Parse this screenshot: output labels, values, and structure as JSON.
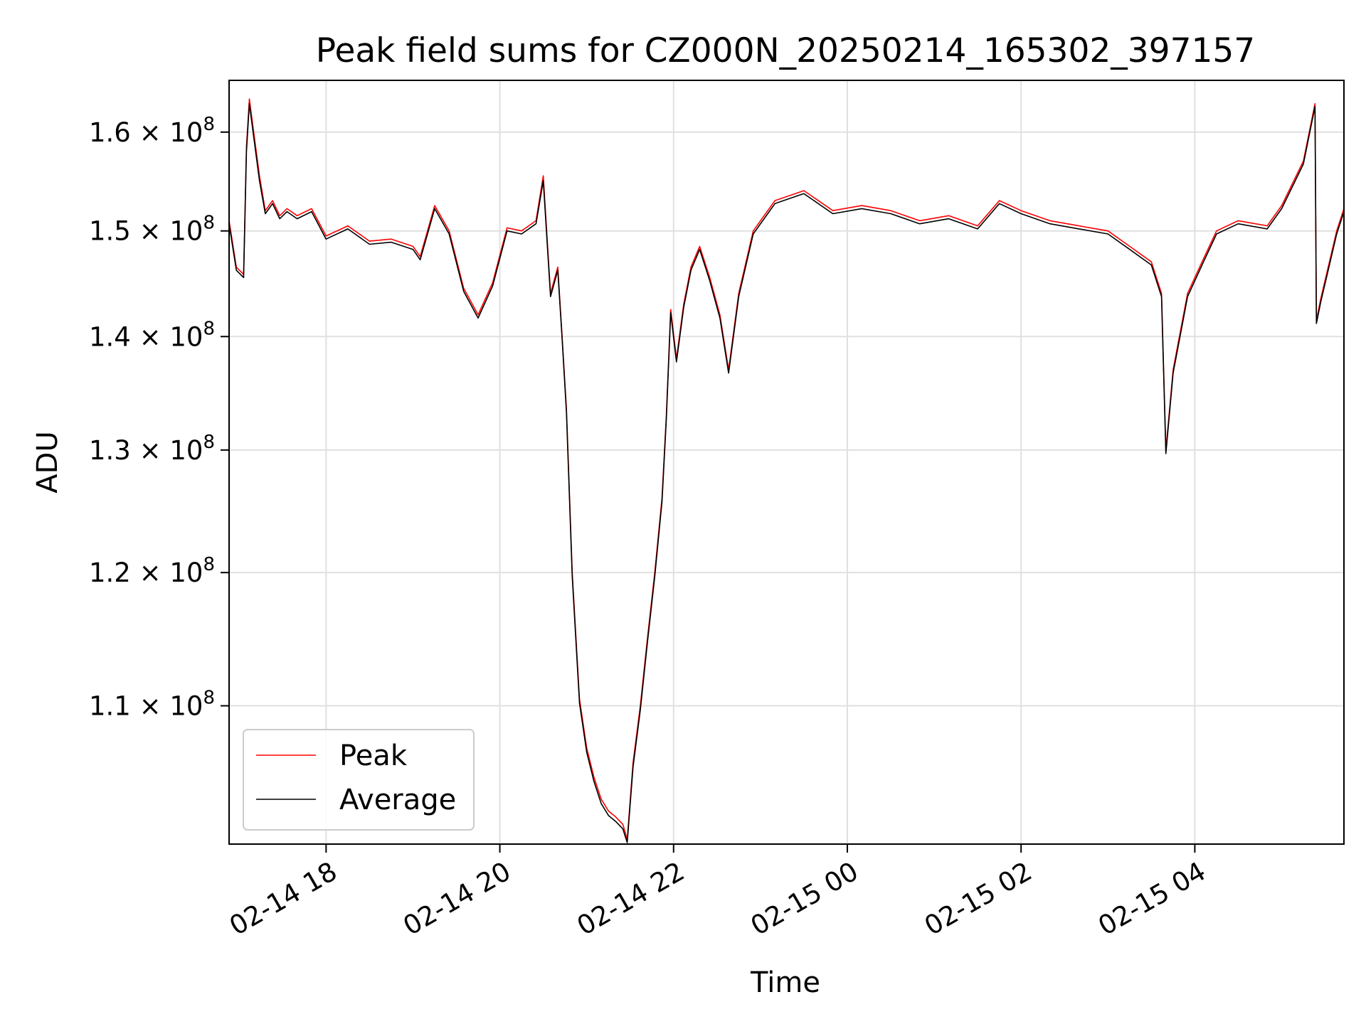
{
  "chart_data": {
    "type": "line",
    "title": "Peak field sums for CZ000N_20250214_165302_397157",
    "xlabel": "Time",
    "ylabel": "ADU",
    "yscale": "log",
    "xlim": [
      "2025-02-14 16:53",
      "2025-02-15 05:43"
    ],
    "ylim": [
      100500000,
      165500000
    ],
    "grid": true,
    "legend": "lower-left",
    "x_ticks": [
      {
        "t": "2025-02-14 18:00",
        "label": "02-14 18"
      },
      {
        "t": "2025-02-14 20:00",
        "label": "02-14 20"
      },
      {
        "t": "2025-02-14 22:00",
        "label": "02-14 22"
      },
      {
        "t": "2025-02-15 00:00",
        "label": "02-15 00"
      },
      {
        "t": "2025-02-15 02:00",
        "label": "02-15 02"
      },
      {
        "t": "2025-02-15 04:00",
        "label": "02-15 04"
      }
    ],
    "y_ticks": [
      {
        "value": 110000000,
        "mantissa": "1.1",
        "times": "×",
        "base": "10",
        "exponent": "8"
      },
      {
        "value": 120000000,
        "mantissa": "1.2",
        "times": "×",
        "base": "10",
        "exponent": "8"
      },
      {
        "value": 130000000,
        "mantissa": "1.3",
        "times": "×",
        "base": "10",
        "exponent": "8"
      },
      {
        "value": 140000000,
        "mantissa": "1.4",
        "times": "×",
        "base": "10",
        "exponent": "8"
      },
      {
        "value": 150000000,
        "mantissa": "1.5",
        "times": "×",
        "base": "10",
        "exponent": "8"
      },
      {
        "value": 160000000,
        "mantissa": "1.6",
        "times": "×",
        "base": "10",
        "exponent": "8"
      }
    ],
    "series": [
      {
        "name": "Peak",
        "color": "#ff0000",
        "x": [
          "2025-02-14 16:53",
          "2025-02-14 16:58",
          "2025-02-14 17:03",
          "2025-02-14 17:05",
          "2025-02-14 17:07",
          "2025-02-14 17:10",
          "2025-02-14 17:14",
          "2025-02-14 17:18",
          "2025-02-14 17:23",
          "2025-02-14 17:28",
          "2025-02-14 17:33",
          "2025-02-14 17:40",
          "2025-02-14 17:50",
          "2025-02-14 18:00",
          "2025-02-14 18:15",
          "2025-02-14 18:30",
          "2025-02-14 18:45",
          "2025-02-14 19:00",
          "2025-02-14 19:05",
          "2025-02-14 19:15",
          "2025-02-14 19:25",
          "2025-02-14 19:35",
          "2025-02-14 19:45",
          "2025-02-14 19:55",
          "2025-02-14 20:05",
          "2025-02-14 20:15",
          "2025-02-14 20:25",
          "2025-02-14 20:30",
          "2025-02-14 20:35",
          "2025-02-14 20:40",
          "2025-02-14 20:43",
          "2025-02-14 20:46",
          "2025-02-14 20:50",
          "2025-02-14 20:55",
          "2025-02-14 21:00",
          "2025-02-14 21:05",
          "2025-02-14 21:10",
          "2025-02-14 21:15",
          "2025-02-14 21:20",
          "2025-02-14 21:25",
          "2025-02-14 21:28",
          "2025-02-14 21:32",
          "2025-02-14 21:37",
          "2025-02-14 21:42",
          "2025-02-14 21:47",
          "2025-02-14 21:52",
          "2025-02-14 21:55",
          "2025-02-14 21:58",
          "2025-02-14 22:02",
          "2025-02-14 22:07",
          "2025-02-14 22:12",
          "2025-02-14 22:18",
          "2025-02-14 22:25",
          "2025-02-14 22:32",
          "2025-02-14 22:38",
          "2025-02-14 22:45",
          "2025-02-14 22:55",
          "2025-02-14 23:10",
          "2025-02-14 23:30",
          "2025-02-14 23:50",
          "2025-02-15 00:10",
          "2025-02-15 00:30",
          "2025-02-15 00:50",
          "2025-02-15 01:10",
          "2025-02-15 01:30",
          "2025-02-15 01:45",
          "2025-02-15 02:00",
          "2025-02-15 02:20",
          "2025-02-15 02:40",
          "2025-02-15 03:00",
          "2025-02-15 03:15",
          "2025-02-15 03:30",
          "2025-02-15 03:37",
          "2025-02-15 03:40",
          "2025-02-15 03:45",
          "2025-02-15 03:55",
          "2025-02-15 04:05",
          "2025-02-15 04:15",
          "2025-02-15 04:30",
          "2025-02-15 04:50",
          "2025-02-15 05:00",
          "2025-02-15 05:15",
          "2025-02-15 05:23",
          "2025-02-15 05:24",
          "2025-02-15 05:27",
          "2025-02-15 05:33",
          "2025-02-15 05:38",
          "2025-02-15 05:43"
        ],
        "values": [
          151000000,
          146500000,
          145800000,
          158500000,
          163500000,
          160000000,
          155500000,
          152000000,
          153000000,
          151500000,
          152200000,
          151500000,
          152200000,
          149500000,
          150500000,
          149000000,
          149200000,
          148500000,
          147500000,
          152500000,
          150000000,
          144500000,
          142000000,
          145000000,
          150300000,
          150000000,
          151000000,
          155500000,
          144000000,
          146500000,
          140000000,
          133500000,
          120000000,
          110500000,
          107000000,
          105000000,
          103500000,
          102700000,
          102300000,
          101800000,
          100800000,
          106000000,
          110000000,
          115000000,
          120000000,
          126000000,
          133000000,
          142500000,
          138000000,
          143000000,
          146500000,
          148500000,
          145500000,
          142000000,
          137000000,
          144000000,
          150000000,
          153000000,
          154000000,
          152000000,
          152500000,
          152000000,
          151000000,
          151500000,
          150500000,
          153000000,
          152000000,
          151000000,
          150500000,
          150000000,
          148500000,
          147000000,
          144000000,
          130000000,
          137000000,
          144000000,
          147000000,
          150000000,
          151000000,
          150500000,
          152500000,
          157000000,
          163000000,
          141500000,
          143500000,
          147000000,
          150000000,
          152200000
        ]
      },
      {
        "name": "Average",
        "color": "#000000",
        "x": [
          "2025-02-14 16:53",
          "2025-02-14 16:58",
          "2025-02-14 17:03",
          "2025-02-14 17:05",
          "2025-02-14 17:07",
          "2025-02-14 17:10",
          "2025-02-14 17:14",
          "2025-02-14 17:18",
          "2025-02-14 17:23",
          "2025-02-14 17:28",
          "2025-02-14 17:33",
          "2025-02-14 17:40",
          "2025-02-14 17:50",
          "2025-02-14 18:00",
          "2025-02-14 18:15",
          "2025-02-14 18:30",
          "2025-02-14 18:45",
          "2025-02-14 19:00",
          "2025-02-14 19:05",
          "2025-02-14 19:15",
          "2025-02-14 19:25",
          "2025-02-14 19:35",
          "2025-02-14 19:45",
          "2025-02-14 19:55",
          "2025-02-14 20:05",
          "2025-02-14 20:15",
          "2025-02-14 20:25",
          "2025-02-14 20:30",
          "2025-02-14 20:35",
          "2025-02-14 20:40",
          "2025-02-14 20:43",
          "2025-02-14 20:46",
          "2025-02-14 20:50",
          "2025-02-14 20:55",
          "2025-02-14 21:00",
          "2025-02-14 21:05",
          "2025-02-14 21:10",
          "2025-02-14 21:15",
          "2025-02-14 21:20",
          "2025-02-14 21:25",
          "2025-02-14 21:28",
          "2025-02-14 21:32",
          "2025-02-14 21:37",
          "2025-02-14 21:42",
          "2025-02-14 21:47",
          "2025-02-14 21:52",
          "2025-02-14 21:55",
          "2025-02-14 21:58",
          "2025-02-14 22:02",
          "2025-02-14 22:07",
          "2025-02-14 22:12",
          "2025-02-14 22:18",
          "2025-02-14 22:25",
          "2025-02-14 22:32",
          "2025-02-14 22:38",
          "2025-02-14 22:45",
          "2025-02-14 22:55",
          "2025-02-14 23:10",
          "2025-02-14 23:30",
          "2025-02-14 23:50",
          "2025-02-15 00:10",
          "2025-02-15 00:30",
          "2025-02-15 00:50",
          "2025-02-15 01:10",
          "2025-02-15 01:30",
          "2025-02-15 01:45",
          "2025-02-15 02:00",
          "2025-02-15 02:20",
          "2025-02-15 02:40",
          "2025-02-15 03:00",
          "2025-02-15 03:15",
          "2025-02-15 03:30",
          "2025-02-15 03:37",
          "2025-02-15 03:40",
          "2025-02-15 03:45",
          "2025-02-15 03:55",
          "2025-02-15 04:05",
          "2025-02-15 04:15",
          "2025-02-15 04:30",
          "2025-02-15 04:50",
          "2025-02-15 05:00",
          "2025-02-15 05:15",
          "2025-02-15 05:23",
          "2025-02-15 05:24",
          "2025-02-15 05:27",
          "2025-02-15 05:33",
          "2025-02-15 05:38",
          "2025-02-15 05:43"
        ],
        "values": [
          150700000,
          146200000,
          145500000,
          158000000,
          163000000,
          159500000,
          155000000,
          151700000,
          152700000,
          151200000,
          151900000,
          151200000,
          151900000,
          149200000,
          150200000,
          148700000,
          148900000,
          148200000,
          147200000,
          152200000,
          149700000,
          144200000,
          141700000,
          144700000,
          150000000,
          149700000,
          150700000,
          155000000,
          143700000,
          146200000,
          139800000,
          133200000,
          119700000,
          110200000,
          106700000,
          104700000,
          103200000,
          102400000,
          102000000,
          101500000,
          100600000,
          105700000,
          109700000,
          114700000,
          119700000,
          125700000,
          132700000,
          142200000,
          137700000,
          142700000,
          146200000,
          148200000,
          145200000,
          141700000,
          136700000,
          143700000,
          149700000,
          152700000,
          153700000,
          151700000,
          152200000,
          151700000,
          150700000,
          151200000,
          150200000,
          152700000,
          151700000,
          150700000,
          150200000,
          149700000,
          148200000,
          146700000,
          143700000,
          129700000,
          136700000,
          143700000,
          146700000,
          149700000,
          150700000,
          150200000,
          152200000,
          156700000,
          162700000,
          141200000,
          143200000,
          146700000,
          149700000,
          151900000
        ]
      }
    ]
  }
}
